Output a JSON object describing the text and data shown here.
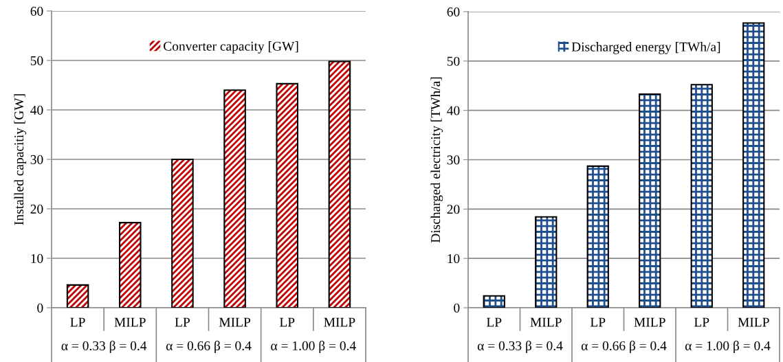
{
  "chart_data": [
    {
      "type": "bar",
      "ylabel": "Installed capacitiy [GW]",
      "categories": [
        "LP",
        "MILP",
        "LP",
        "MILP",
        "LP",
        "MILP"
      ],
      "series": [
        {
          "name": "Converter capacity [GW]",
          "color": "#c00000",
          "values": [
            4.6,
            17.2,
            30.0,
            44.0,
            45.3,
            49.8
          ]
        }
      ],
      "ylim": [
        0,
        60
      ],
      "yticks": [
        0,
        10,
        20,
        30,
        40,
        50,
        60
      ],
      "grid": "y",
      "legend": "top",
      "annotations": [
        "α = 0.33 β = 0.4",
        "α = 0.66 β = 0.4",
        "α = 1.00 β = 0.4"
      ]
    },
    {
      "type": "bar",
      "ylabel": "Discharged electricity [TWh/a]",
      "categories": [
        "LP",
        "MILP",
        "LP",
        "MILP",
        "LP",
        "MILP"
      ],
      "series": [
        {
          "name": "Discharged energy [TWh/a]",
          "color": "#1f4e8c",
          "values": [
            2.4,
            18.4,
            28.7,
            43.3,
            45.2,
            57.7
          ]
        }
      ],
      "ylim": [
        0,
        60
      ],
      "yticks": [
        0,
        10,
        20,
        30,
        40,
        50,
        60
      ],
      "grid": "y",
      "legend": "top",
      "annotations": [
        "α = 0.33 β = 0.4",
        "α = 0.66 β = 0.4",
        "α = 1.00 β = 0.4"
      ]
    }
  ]
}
